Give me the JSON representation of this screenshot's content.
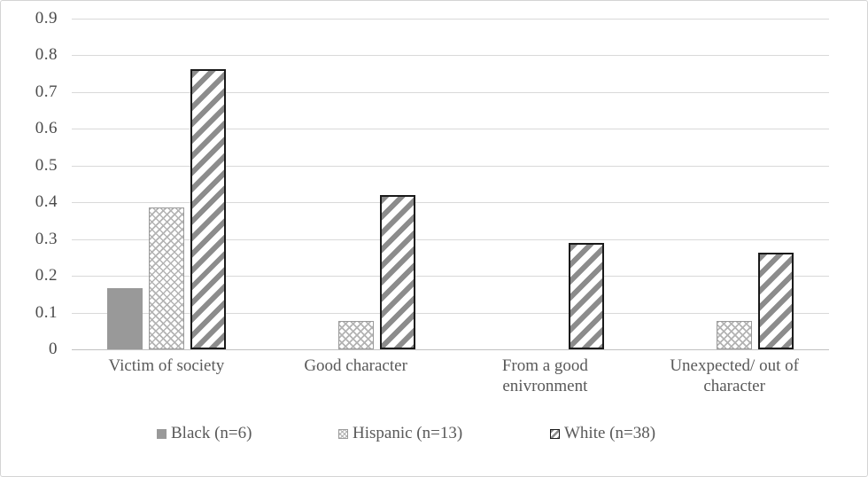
{
  "chart_data": {
    "type": "bar",
    "title": "",
    "xlabel": "",
    "ylabel": "",
    "categories": [
      "Victim of society",
      "Good character",
      "From a good enivronment",
      "Unexpected/ out of character"
    ],
    "series": [
      {
        "name": "Black (n=6)",
        "pattern": "solid",
        "values": [
          0.167,
          0,
          0,
          0
        ]
      },
      {
        "name": "Hispanic (n=13)",
        "pattern": "crosshatch",
        "values": [
          0.385,
          0.077,
          0,
          0.077
        ]
      },
      {
        "name": "White (n=38)",
        "pattern": "stripes",
        "values": [
          0.763,
          0.421,
          0.289,
          0.263
        ]
      }
    ],
    "ylim": [
      0,
      0.9
    ],
    "yticks": [
      0,
      0.1,
      0.2,
      0.3,
      0.4,
      0.5,
      0.6,
      0.7,
      0.8,
      0.9
    ],
    "grid": true,
    "legend_position": "bottom"
  },
  "colors": {
    "bar_solid": "#999999",
    "stripe_fill": "#8c8c8c",
    "crosshatch_fill": "#b3b3b3",
    "stripe_border": "#1a1a1a",
    "gridline": "#d9d9d9",
    "axis_line": "#c2c2c2",
    "label_text": "#595959",
    "tick_text": "#4a4a4a",
    "frame_border": "#d4d4d4"
  }
}
